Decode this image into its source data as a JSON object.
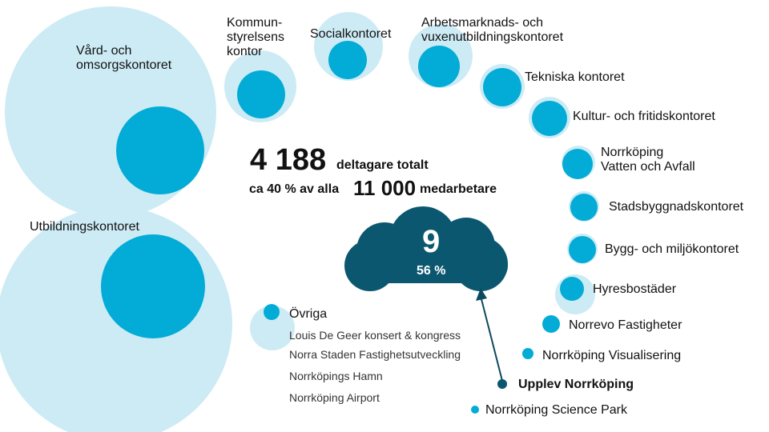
{
  "colors": {
    "light": "#cdebf5",
    "mid": "#02acd6",
    "dark": "#0b5770",
    "arrow": "#0b4a5e"
  },
  "offices": [
    {
      "label": "Vård- och\nomsorgskontoret",
      "id": "vard-och-omsorgskontoret"
    },
    {
      "label": "Kommun-\nstyrelsens\nkontor",
      "id": "kommunstyrelsens-kontor"
    },
    {
      "label": "Socialkontoret",
      "id": "socialkontoret"
    },
    {
      "label": "Arbetsmarknads- och\nvuxenutbildningskontoret",
      "id": "arbetsmarknads-kontoret"
    },
    {
      "label": "Tekniska kontoret",
      "id": "tekniska-kontoret"
    },
    {
      "label": "Kultur- och fritidskontoret",
      "id": "kultur-och-fritidskontoret"
    },
    {
      "label": "Norrköping\nVatten och Avfall",
      "id": "norrkoping-vatten-och-avfall"
    },
    {
      "label": "Stadsbyggnadskontoret",
      "id": "stadsbyggnadskontoret"
    },
    {
      "label": "Bygg- och miljökontoret",
      "id": "bygg-och-miljokontoret"
    },
    {
      "label": "Hyresbostäder",
      "id": "hyresbostader"
    },
    {
      "label": "Norrevo Fastigheter",
      "id": "norrevo-fastigheter"
    },
    {
      "label": "Norrköping Visualisering",
      "id": "norrkoping-visualisering"
    },
    {
      "label": "Upplev Norrköping",
      "id": "upplev-norrkoping"
    },
    {
      "label": "Norrköping Science Park",
      "id": "norrkoping-science-park"
    },
    {
      "label": "Utbildningskontoret",
      "id": "utbildningskontoret"
    }
  ],
  "ovriga": {
    "title": "Övriga",
    "items": [
      "Louis De Geer konsert & kongress",
      "Norra Staden Fastighetsutveckling",
      "Norrköpings Hamn",
      "Norrköping Airport"
    ]
  },
  "summary": {
    "total": "4 188",
    "total_label": "deltagare totalt",
    "share_prefix": "ca 40 % av alla",
    "share_number": "11 000",
    "share_suffix": "medarbetare"
  },
  "cloud": {
    "value": "9",
    "percent": "56 %"
  }
}
